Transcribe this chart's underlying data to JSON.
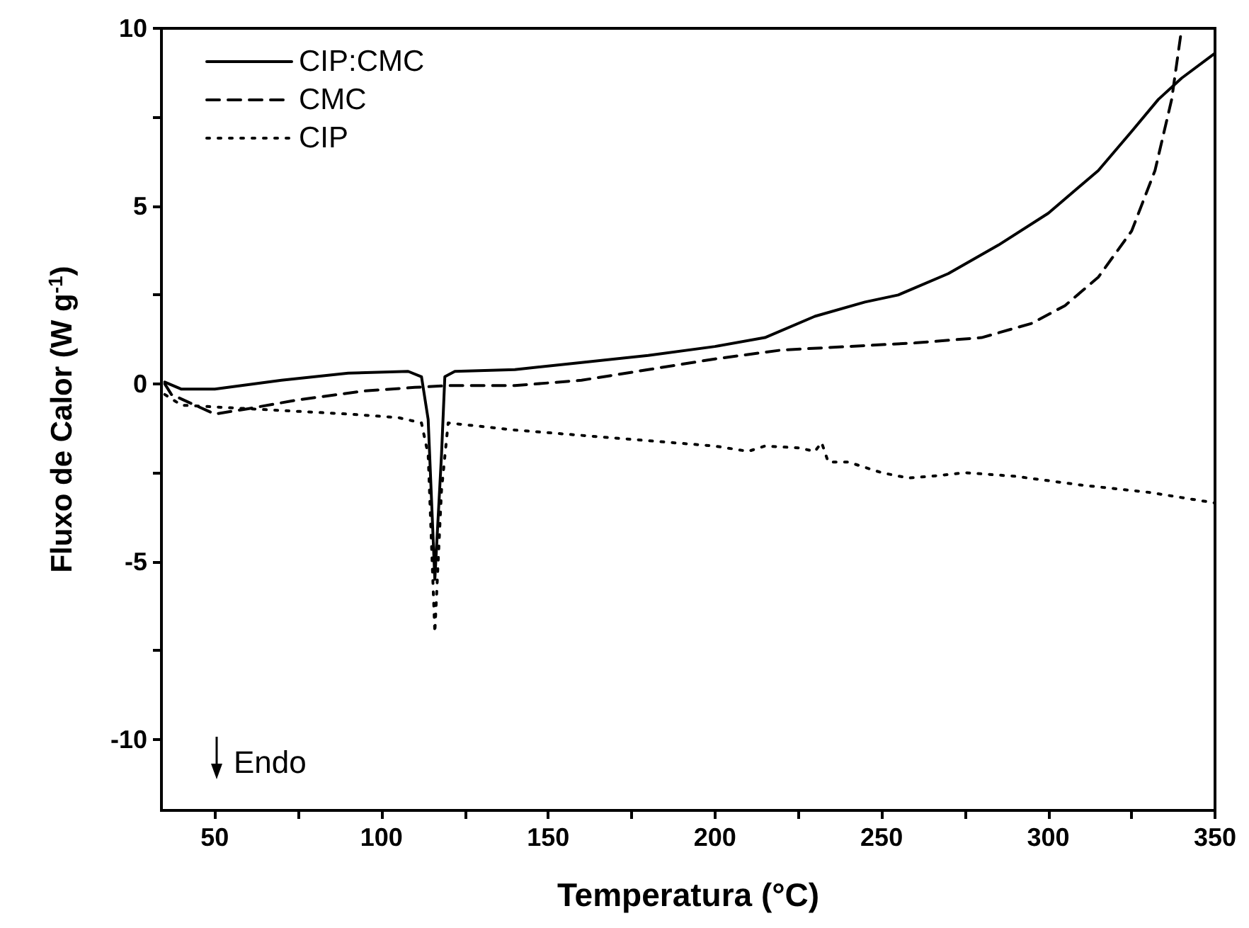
{
  "chart_data": {
    "type": "line",
    "xlabel": "Temperatura (°C)",
    "ylabel": "Fluxo de Calor (W g$^{-1}$)",
    "xlim": [
      34,
      350
    ],
    "ylim": [
      -12,
      10
    ],
    "xticks": [
      {
        "value": 50,
        "label": "50"
      },
      {
        "value": 75,
        "label": null
      },
      {
        "value": 100,
        "label": "100"
      },
      {
        "value": 125,
        "label": null
      },
      {
        "value": 150,
        "label": "150"
      },
      {
        "value": 175,
        "label": null
      },
      {
        "value": 200,
        "label": "200"
      },
      {
        "value": 225,
        "label": null
      },
      {
        "value": 250,
        "label": "250"
      },
      {
        "value": 275,
        "label": null
      },
      {
        "value": 300,
        "label": "300"
      },
      {
        "value": 325,
        "label": null
      },
      {
        "value": 350,
        "label": "350"
      }
    ],
    "yticks": [
      {
        "value": -10,
        "label": "-10"
      },
      {
        "value": -7.5,
        "label": null
      },
      {
        "value": -5,
        "label": "-5"
      },
      {
        "value": -2.5,
        "label": null
      },
      {
        "value": 0,
        "label": "0"
      },
      {
        "value": 2.5,
        "label": null
      },
      {
        "value": 5,
        "label": "5"
      },
      {
        "value": 7.5,
        "label": null
      },
      {
        "value": 10,
        "label": "10"
      }
    ],
    "grid": false,
    "legend": "top left",
    "marker": "none",
    "annotations": [
      {
        "text": "Endo"
      }
    ],
    "series": [
      {
        "name": "CIP:CMC",
        "color": "#000000",
        "line_style": "solid",
        "x": [
          35,
          40,
          50,
          70,
          90,
          108,
          112,
          114,
          116,
          118,
          119,
          122,
          140,
          160,
          180,
          200,
          215,
          230,
          245,
          255,
          270,
          285,
          300,
          315,
          325,
          333,
          340,
          350
        ],
        "values": [
          0.05,
          -0.15,
          -0.15,
          0.1,
          0.3,
          0.35,
          0.2,
          -1,
          -5.5,
          -2,
          0.2,
          0.35,
          0.4,
          0.6,
          0.8,
          1.05,
          1.3,
          1.9,
          2.3,
          2.5,
          3.1,
          3.9,
          4.8,
          6.0,
          7.1,
          8.0,
          8.6,
          9.3
        ]
      },
      {
        "name": "CMC",
        "color": "#000000",
        "line_style": "dashed",
        "x": [
          35,
          37,
          50,
          60,
          75,
          95,
          110,
          120,
          140,
          160,
          180,
          200,
          220,
          240,
          260,
          280,
          295,
          305,
          315,
          325,
          332,
          337,
          340
        ],
        "values": [
          0,
          -0.3,
          -0.85,
          -0.7,
          -0.45,
          -0.2,
          -0.1,
          -0.05,
          -0.05,
          0.1,
          0.4,
          0.7,
          0.95,
          1.05,
          1.15,
          1.3,
          1.7,
          2.2,
          3.0,
          4.3,
          6.0,
          8.0,
          10
        ]
      },
      {
        "name": "CIP",
        "color": "#000000",
        "line_style": "dotted",
        "x": [
          35,
          40,
          50,
          70,
          90,
          105,
          112,
          114,
          116,
          118,
          120,
          140,
          160,
          180,
          200,
          210,
          215,
          225,
          230,
          232,
          234,
          240,
          250,
          258,
          265,
          275,
          290,
          310,
          330,
          350
        ],
        "values": [
          -0.3,
          -0.6,
          -0.65,
          -0.75,
          -0.85,
          -0.95,
          -1.1,
          -2,
          -7,
          -3,
          -1.1,
          -1.3,
          -1.45,
          -1.6,
          -1.75,
          -1.9,
          -1.75,
          -1.8,
          -1.9,
          -1.65,
          -2.2,
          -2.2,
          -2.5,
          -2.65,
          -2.6,
          -2.5,
          -2.6,
          -2.85,
          -3.05,
          -3.35
        ]
      }
    ]
  }
}
